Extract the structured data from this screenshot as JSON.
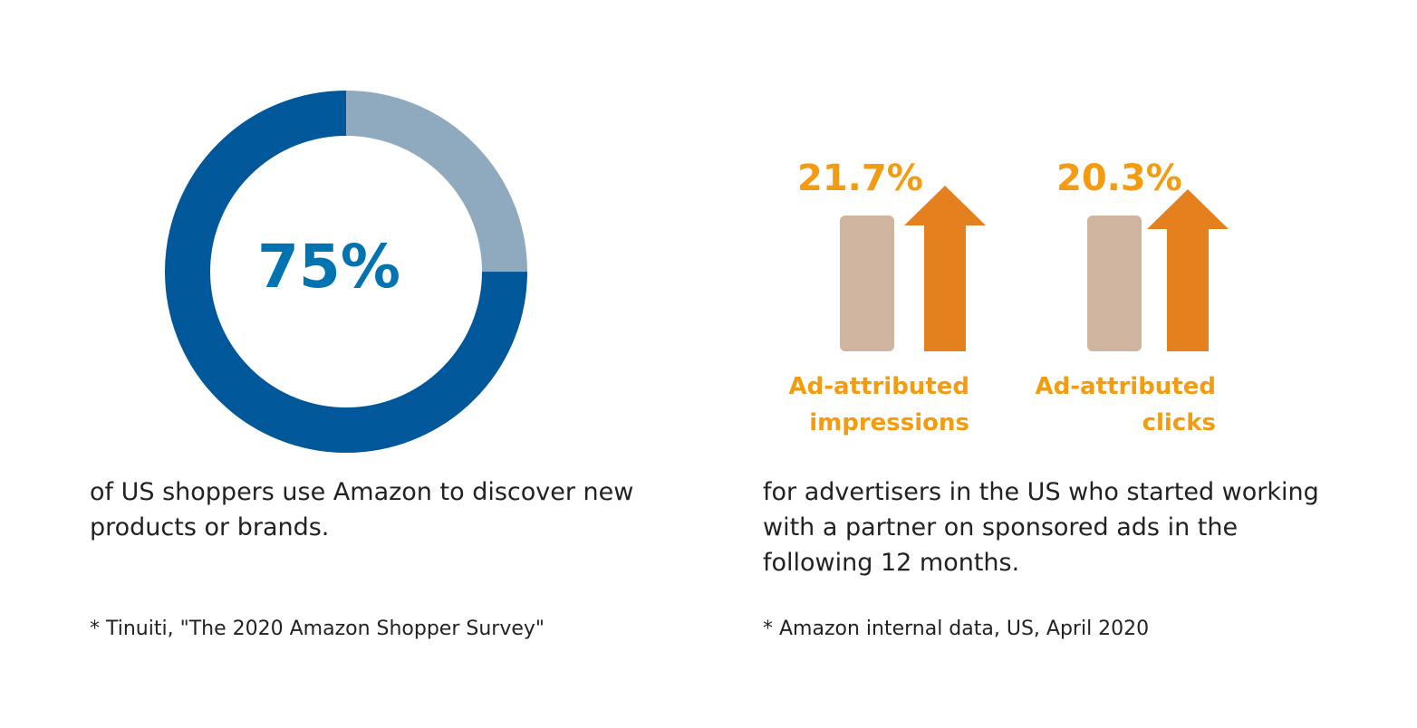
{
  "colors": {
    "donut_primary": "#00579a",
    "donut_remainder": "#8fa9bf",
    "center_text": "#0073b0",
    "baseline_bar": "#cfb5a0",
    "arrow": "#e5801f",
    "accent_text": "#f39c12"
  },
  "chart_data": [
    {
      "type": "pie",
      "categories": [
        "",
        ""
      ],
      "values": [
        75,
        25
      ],
      "center_label": "75%",
      "caption_lines": [
        "of US shoppers use Amazon to discover new",
        "products or brands."
      ],
      "source": "* Tinuiti, \"The 2020 Amazon Shopper Survey\""
    },
    {
      "type": "bar",
      "metrics": [
        {
          "value_label": "21.7%",
          "value": 21.7,
          "label_lines": [
            "Ad-attributed",
            "impressions"
          ]
        },
        {
          "value_label": "20.3%",
          "value": 20.3,
          "label_lines": [
            "Ad-attributed",
            "clicks"
          ]
        }
      ],
      "caption_lines": [
        "for advertisers in the US who started working",
        "with a partner on sponsored ads in the",
        "following 12 months."
      ],
      "source": "* Amazon internal data, US, April 2020"
    }
  ]
}
